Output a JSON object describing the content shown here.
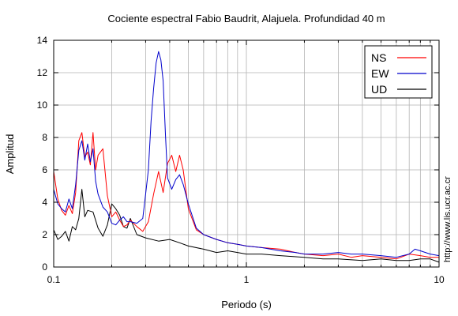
{
  "chart_data": {
    "type": "line",
    "title": "Cociente espectral Fabio Baudrit, Alajuela. Profundidad 40 m",
    "xlabel": "Periodo (s)",
    "ylabel": "Amplitud",
    "xscale": "log",
    "xlim": [
      0.1,
      10
    ],
    "ylim": [
      0,
      14
    ],
    "x_ticks": [
      0.1,
      1,
      10
    ],
    "x_tick_labels": [
      "0.1",
      "1",
      "10"
    ],
    "y_ticks": [
      0,
      2,
      4,
      6,
      8,
      10,
      12,
      14
    ],
    "y_tick_labels": [
      "0",
      "2",
      "4",
      "6",
      "8",
      "10",
      "12",
      "14"
    ],
    "grid": true,
    "legend_position": "top-right",
    "side_text": "http://www.lis.ucr.ac.cr",
    "series": [
      {
        "name": "NS",
        "color": "#ff0000",
        "x": [
          0.1,
          0.105,
          0.11,
          0.115,
          0.12,
          0.125,
          0.13,
          0.135,
          0.14,
          0.145,
          0.15,
          0.155,
          0.16,
          0.165,
          0.17,
          0.18,
          0.19,
          0.2,
          0.21,
          0.22,
          0.23,
          0.24,
          0.25,
          0.27,
          0.29,
          0.31,
          0.33,
          0.35,
          0.37,
          0.39,
          0.41,
          0.43,
          0.45,
          0.47,
          0.5,
          0.55,
          0.6,
          0.7,
          0.8,
          0.9,
          1.0,
          1.2,
          1.5,
          1.8,
          2.0,
          2.5,
          3.0,
          3.5,
          4.0,
          5.0,
          6.0,
          7.0,
          8.0,
          9.0,
          10.0
        ],
        "y": [
          5.9,
          4.2,
          3.5,
          3.2,
          3.8,
          3.3,
          4.6,
          7.8,
          8.3,
          6.8,
          7.1,
          6.3,
          8.3,
          6.0,
          6.9,
          7.3,
          4.4,
          3.1,
          3.4,
          2.9,
          2.5,
          2.6,
          2.9,
          2.5,
          2.2,
          2.8,
          4.5,
          5.9,
          4.6,
          6.4,
          6.9,
          5.9,
          6.9,
          6.0,
          3.6,
          2.3,
          2.0,
          1.7,
          1.5,
          1.4,
          1.3,
          1.2,
          1.1,
          0.9,
          0.8,
          0.7,
          0.8,
          0.6,
          0.7,
          0.6,
          0.5,
          0.8,
          0.7,
          0.6,
          0.6
        ]
      },
      {
        "name": "EW",
        "color": "#0000cc",
        "x": [
          0.1,
          0.105,
          0.11,
          0.115,
          0.12,
          0.125,
          0.13,
          0.135,
          0.14,
          0.145,
          0.15,
          0.155,
          0.16,
          0.165,
          0.17,
          0.18,
          0.19,
          0.2,
          0.21,
          0.22,
          0.23,
          0.24,
          0.25,
          0.27,
          0.29,
          0.3,
          0.31,
          0.32,
          0.33,
          0.34,
          0.35,
          0.36,
          0.37,
          0.38,
          0.39,
          0.41,
          0.43,
          0.45,
          0.47,
          0.5,
          0.55,
          0.6,
          0.7,
          0.8,
          0.9,
          1.0,
          1.2,
          1.5,
          1.8,
          2.0,
          2.5,
          3.0,
          3.5,
          4.0,
          5.0,
          6.0,
          7.0,
          7.5,
          8.0,
          9.0,
          10.0
        ],
        "y": [
          4.8,
          3.9,
          3.6,
          3.4,
          4.2,
          3.6,
          5.1,
          7.2,
          7.8,
          6.6,
          7.6,
          6.5,
          7.3,
          5.3,
          4.5,
          3.7,
          3.4,
          2.7,
          2.6,
          2.9,
          3.1,
          2.8,
          2.8,
          2.7,
          3.0,
          4.5,
          6.0,
          9.0,
          11.0,
          12.6,
          13.3,
          12.8,
          11.5,
          8.2,
          5.5,
          4.8,
          5.4,
          5.7,
          5.1,
          3.9,
          2.4,
          2.0,
          1.7,
          1.5,
          1.4,
          1.3,
          1.2,
          1.0,
          0.9,
          0.8,
          0.8,
          0.9,
          0.8,
          0.8,
          0.7,
          0.6,
          0.8,
          1.1,
          1.0,
          0.8,
          0.7
        ]
      },
      {
        "name": "UD",
        "color": "#000000",
        "x": [
          0.1,
          0.105,
          0.11,
          0.115,
          0.12,
          0.125,
          0.13,
          0.135,
          0.14,
          0.145,
          0.15,
          0.16,
          0.17,
          0.18,
          0.19,
          0.2,
          0.21,
          0.22,
          0.23,
          0.24,
          0.25,
          0.27,
          0.3,
          0.35,
          0.4,
          0.45,
          0.5,
          0.6,
          0.7,
          0.8,
          0.9,
          1.0,
          1.2,
          1.5,
          2.0,
          2.5,
          3.0,
          4.0,
          5.0,
          6.0,
          7.0,
          8.0,
          9.0,
          10.0
        ],
        "y": [
          2.3,
          1.7,
          1.9,
          2.2,
          1.6,
          2.5,
          2.3,
          3.0,
          4.8,
          3.1,
          3.5,
          3.4,
          2.4,
          1.9,
          2.6,
          3.9,
          3.6,
          3.2,
          2.5,
          2.4,
          3.0,
          2.0,
          1.8,
          1.6,
          1.7,
          1.5,
          1.3,
          1.1,
          0.9,
          1.0,
          0.9,
          0.8,
          0.8,
          0.7,
          0.6,
          0.5,
          0.5,
          0.4,
          0.5,
          0.4,
          0.4,
          0.5,
          0.5,
          0.3
        ]
      }
    ]
  }
}
